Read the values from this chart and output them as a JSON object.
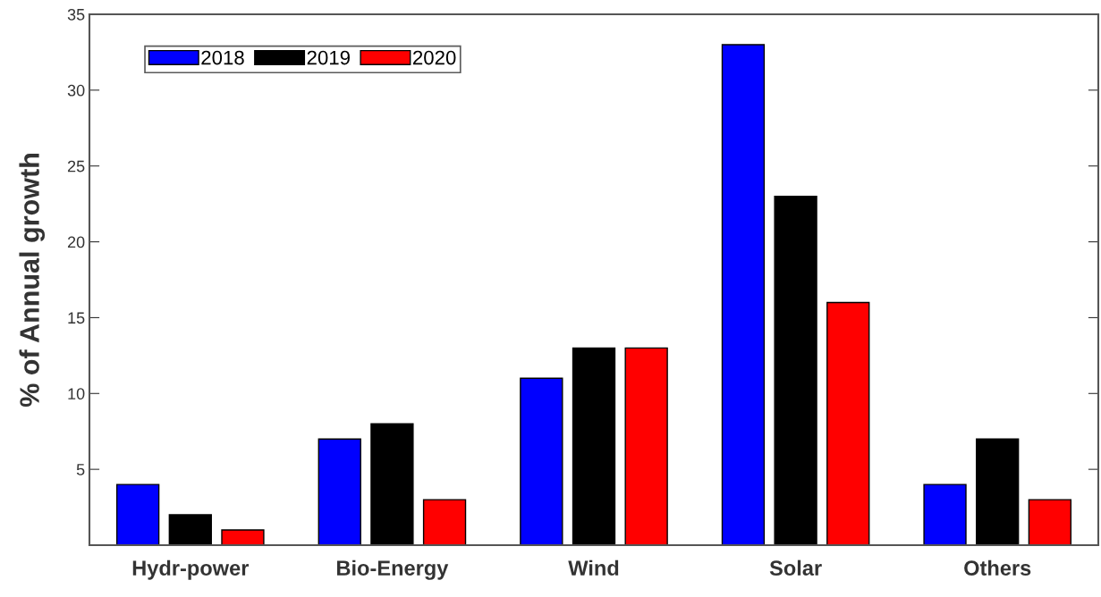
{
  "chart_data": {
    "type": "bar",
    "ylabel": "% of Annual growth",
    "categories": [
      "Hydr-power",
      "Bio-Energy",
      "Wind",
      "Solar",
      "Others"
    ],
    "series": [
      {
        "name": "2018",
        "color": "#0000ff",
        "values": [
          4,
          7,
          11,
          33,
          4
        ]
      },
      {
        "name": "2019",
        "color": "#000000",
        "values": [
          2,
          8,
          13,
          23,
          7
        ]
      },
      {
        "name": "2020",
        "color": "#ff0000",
        "values": [
          1,
          3,
          13,
          16,
          3
        ]
      }
    ],
    "ylim": [
      0,
      35
    ],
    "yticks": [
      {
        "value": 0,
        "label": null
      },
      5,
      10,
      15,
      20,
      25,
      30,
      35
    ],
    "grid": false,
    "legend": "top left"
  }
}
